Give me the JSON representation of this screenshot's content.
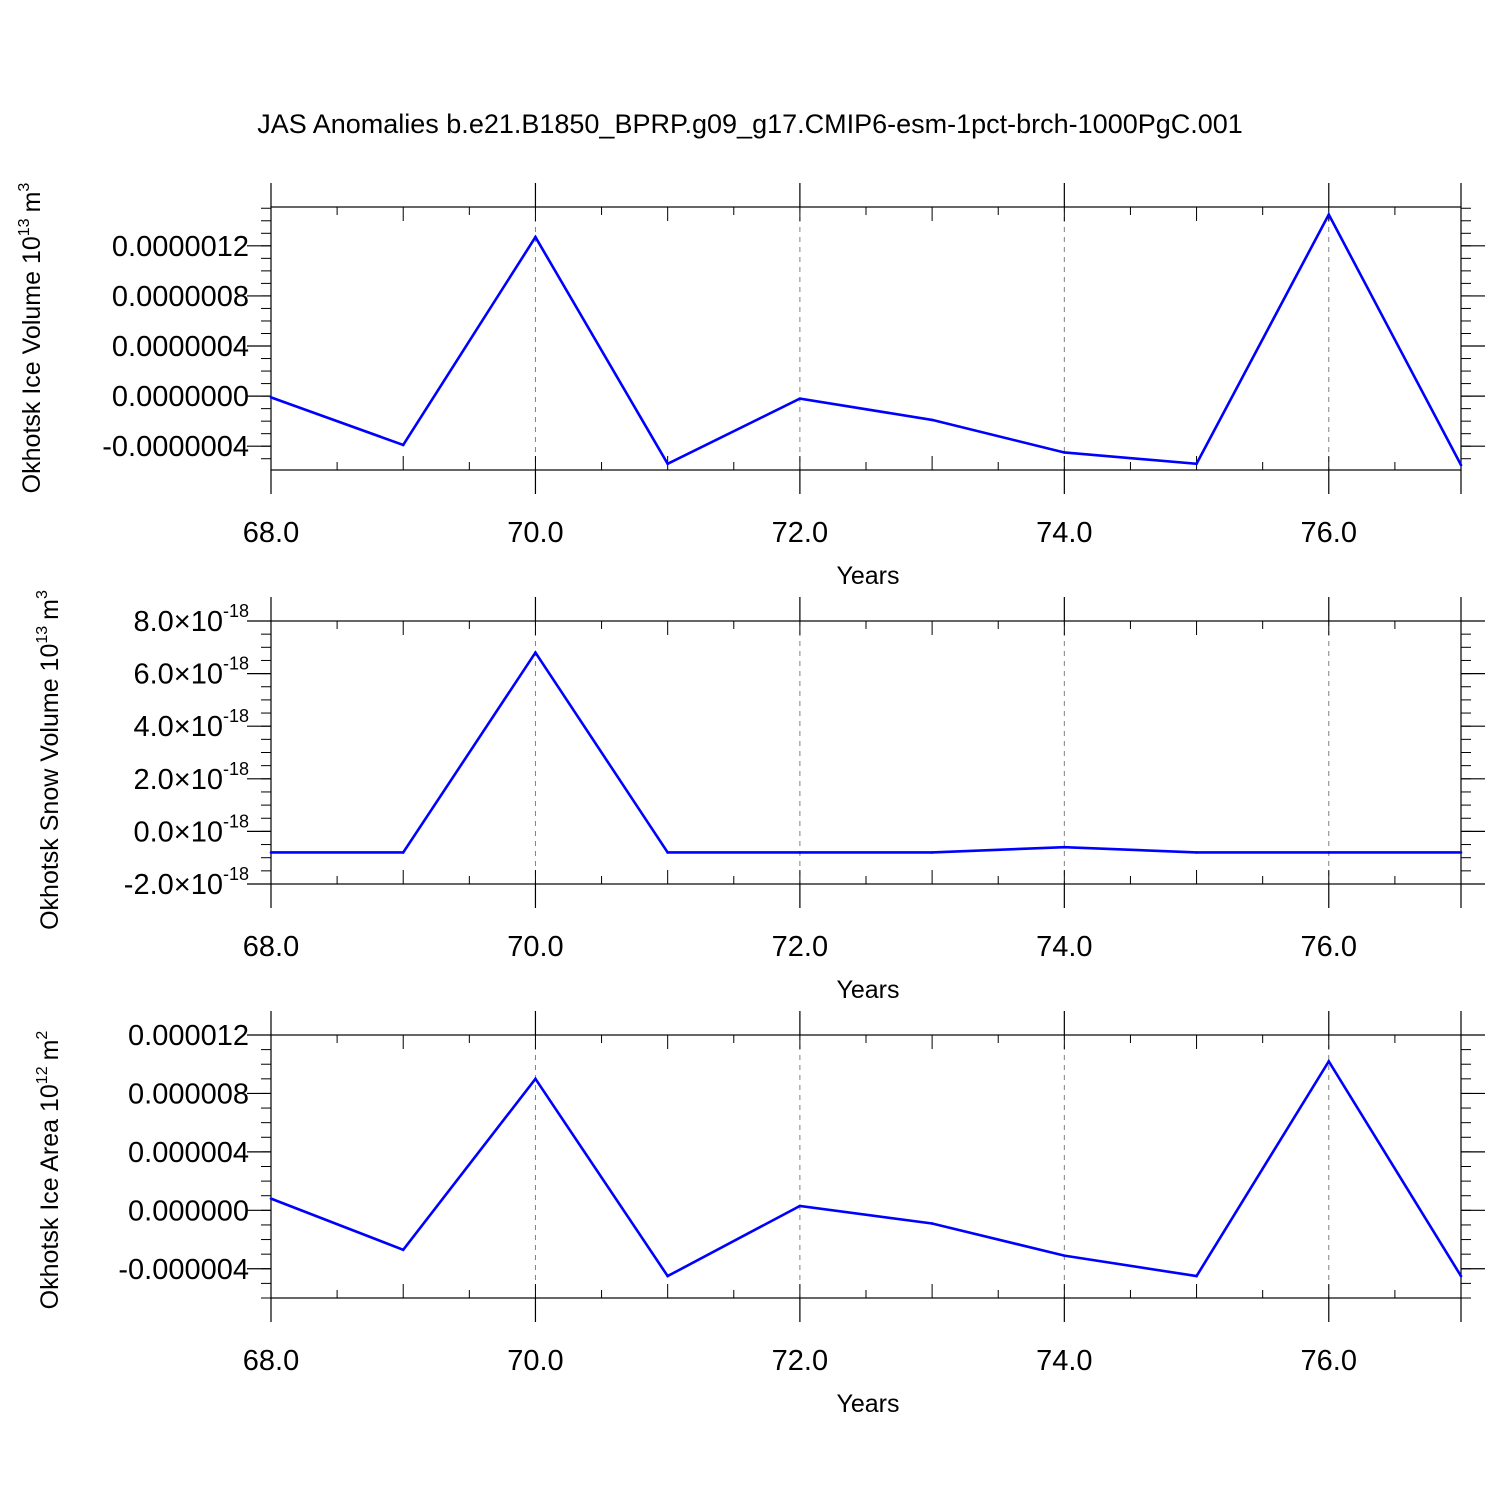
{
  "title": "JAS Anomalies b.e21.B1850_BPRP.g09_g17.CMIP6-esm-1pct-brch-1000PgC.001",
  "colors": {
    "line": "#0000ff",
    "axis": "#000000",
    "grid": "#808080",
    "background": "#ffffff"
  },
  "chart_data": [
    {
      "type": "line",
      "ylabel": "Okhotsk Ice Volume 10",
      "ylabel_exponent": "13",
      "ylabel_unit": "m",
      "ylabel_unit_exponent": "3",
      "xlabel": "Years",
      "xlim": [
        68,
        77
      ],
      "ylim": [
        -5.9e-07,
        1.51e-06
      ],
      "x_ticks": [
        68,
        70,
        72,
        74,
        76
      ],
      "x_tick_labels": [
        "68.0",
        "70.0",
        "72.0",
        "74.0",
        "76.0"
      ],
      "y_ticks": [
        -4e-07,
        0.0,
        4e-07,
        8e-07,
        1.2e-06
      ],
      "y_tick_labels": [
        "-0.0000004",
        "0.0000000",
        "0.0000004",
        "0.0000008",
        "0.0000012"
      ],
      "grid": "dashed vertical at major x ticks",
      "x": [
        68,
        69,
        70,
        71,
        72,
        73,
        74,
        75,
        76,
        77
      ],
      "y": [
        -1e-08,
        -3.9e-07,
        1.27e-06,
        -5.4e-07,
        -2e-08,
        -1.9e-07,
        -4.5e-07,
        -5.4e-07,
        1.45e-06,
        -5.5e-07
      ]
    },
    {
      "type": "line",
      "ylabel": "Okhotsk Snow Volume 10",
      "ylabel_exponent": "13",
      "ylabel_unit": "m",
      "ylabel_unit_exponent": "3",
      "xlabel": "Years",
      "xlim": [
        68,
        77
      ],
      "ylim": [
        -2e-18,
        8e-18
      ],
      "x_ticks": [
        68,
        70,
        72,
        74,
        76
      ],
      "x_tick_labels": [
        "68.0",
        "70.0",
        "72.0",
        "74.0",
        "76.0"
      ],
      "y_ticks": [
        -2e-18,
        0.0,
        2e-18,
        4e-18,
        6e-18,
        8e-18
      ],
      "y_tick_labels": [
        {
          "mantissa": "-2.0",
          "times": "×10",
          "exponent": "-18"
        },
        {
          "mantissa": "0.0",
          "times": "×10",
          "exponent": "-18"
        },
        {
          "mantissa": "2.0",
          "times": "×10",
          "exponent": "-18"
        },
        {
          "mantissa": "4.0",
          "times": "×10",
          "exponent": "-18"
        },
        {
          "mantissa": "6.0",
          "times": "×10",
          "exponent": "-18"
        },
        {
          "mantissa": "8.0",
          "times": "×10",
          "exponent": "-18"
        }
      ],
      "grid": "dashed vertical at major x ticks",
      "x": [
        68,
        69,
        70,
        71,
        72,
        73,
        74,
        75,
        76,
        77
      ],
      "y": [
        -8e-19,
        -8e-19,
        6.8e-18,
        -8e-19,
        -8e-19,
        -8e-19,
        -6e-19,
        -8e-19,
        -8e-19,
        -8e-19
      ]
    },
    {
      "type": "line",
      "ylabel": "Okhotsk Ice Area 10",
      "ylabel_exponent": "12",
      "ylabel_unit": "m",
      "ylabel_unit_exponent": "2",
      "xlabel": "Years",
      "xlim": [
        68,
        77
      ],
      "ylim": [
        -6e-06,
        1.2e-05
      ],
      "x_ticks": [
        68,
        70,
        72,
        74,
        76
      ],
      "x_tick_labels": [
        "68.0",
        "70.0",
        "72.0",
        "74.0",
        "76.0"
      ],
      "y_ticks": [
        -4e-06,
        0.0,
        4e-06,
        8e-06,
        1.2e-05
      ],
      "y_tick_labels": [
        "-0.000004",
        "0.000000",
        "0.000004",
        "0.000008",
        "0.000012"
      ],
      "grid": "dashed vertical at major x ticks",
      "x": [
        68,
        69,
        70,
        71,
        72,
        73,
        74,
        75,
        76,
        77
      ],
      "y": [
        8e-07,
        -2.7e-06,
        9e-06,
        -4.5e-06,
        3e-07,
        -9e-07,
        -3.1e-06,
        -4.5e-06,
        1.02e-05,
        -4.5e-06
      ]
    }
  ]
}
